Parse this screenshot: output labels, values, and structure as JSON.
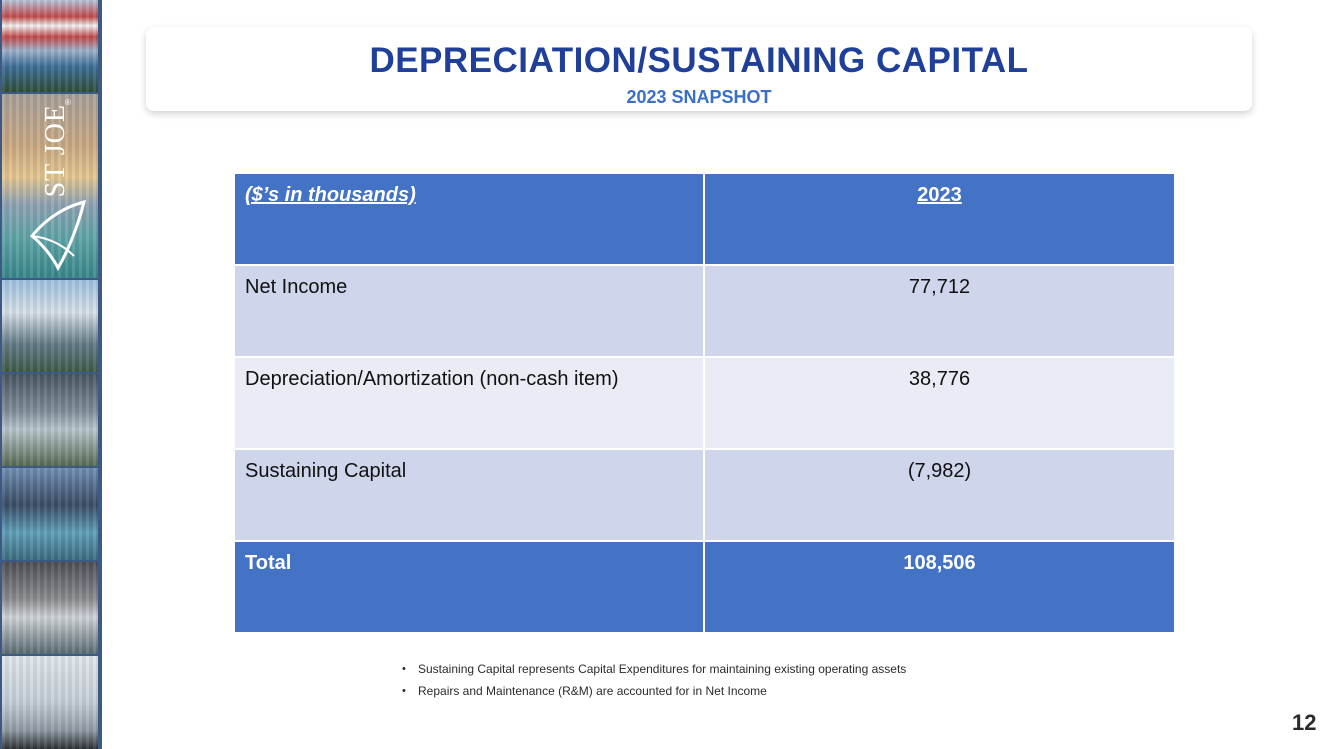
{
  "logo": {
    "brand": "ST JOE",
    "registered": "®"
  },
  "header": {
    "title": "DEPRECIATION/SUSTAINING CAPITAL",
    "subtitle": "2023 SNAPSHOT"
  },
  "table": {
    "header": {
      "label": "($’s in thousands)",
      "value": "2023"
    },
    "rows": [
      {
        "label": "Net Income",
        "value": "77,712"
      },
      {
        "label": "Depreciation/Amortization (non-cash item)",
        "value": "38,776"
      },
      {
        "label": "Sustaining Capital",
        "value": "(7,982)"
      }
    ],
    "total": {
      "label": "Total",
      "value": "108,506"
    }
  },
  "notes": [
    "Sustaining Capital represents Capital Expenditures for maintaining existing operating assets",
    "Repairs and Maintenance (R&M) are accounted for in Net Income"
  ],
  "page_number": "12",
  "colors": {
    "title": "#1f3f99",
    "table_header": "#4472c4",
    "row_odd": "#cfd5ea",
    "row_even": "#e9ebf5"
  }
}
